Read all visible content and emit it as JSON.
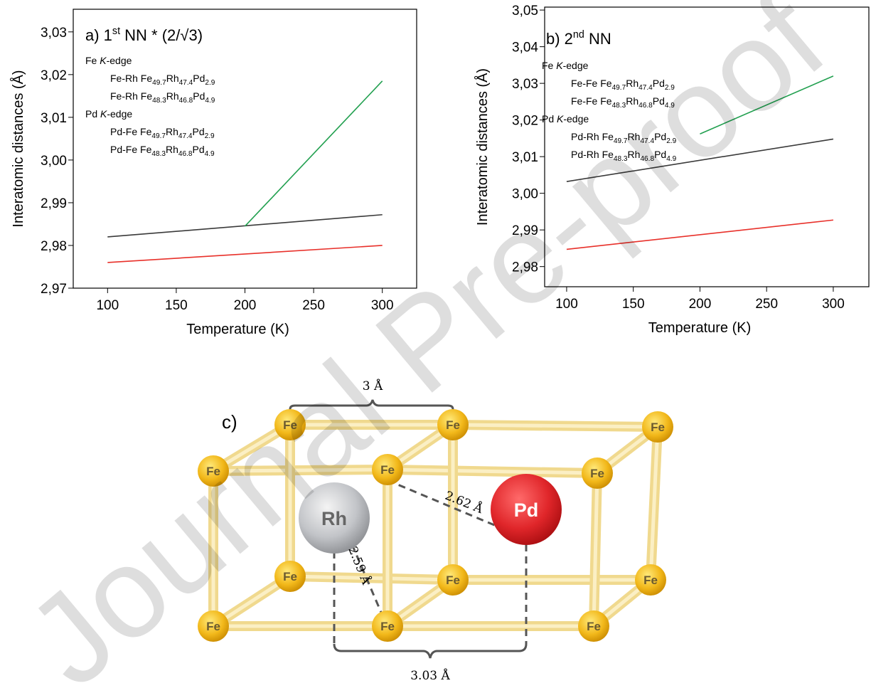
{
  "chart_data": [
    {
      "type": "line",
      "title": "a) 1st NN * (2/√3)",
      "x_label": "Temperature (K)",
      "y_label": "Interatomic distances (Å)",
      "xlim": [
        75,
        325
      ],
      "xticks": [
        100,
        150,
        200,
        250,
        300
      ],
      "ylim": [
        2.97,
        3.0353
      ],
      "yticks": [
        {
          "value": 2.97,
          "label": "2,97"
        },
        {
          "value": 2.98,
          "label": "2,98"
        },
        {
          "value": 2.99,
          "label": "2,99"
        },
        {
          "value": 3.0,
          "label": "3,00"
        },
        {
          "value": 3.01,
          "label": "3,01"
        },
        {
          "value": 3.02,
          "label": "3,02"
        },
        {
          "value": 3.03,
          "label": "3,03"
        }
      ],
      "series": [
        {
          "name": "Fe-Rh Fe49.7Rh47.4Pd2.9",
          "group": "Fe K-edge",
          "color": "#3a3a3a",
          "x": [
            100,
            300
          ],
          "values": [
            2.982,
            2.9872
          ]
        },
        {
          "name": "Fe-Rh Fe48.3Rh46.8Pd4.9",
          "group": "Fe K-edge",
          "color": "#e8302a",
          "x": [
            100,
            300
          ],
          "values": [
            2.976,
            2.98
          ]
        },
        {
          "name": "Pd-Fe Fe49.7Rh47.4Pd2.9",
          "group": "Pd K-edge",
          "color": "#22a050",
          "x": [
            200,
            300
          ],
          "values": [
            2.9845,
            3.0185
          ]
        },
        {
          "name": "Pd-Fe Fe48.3Rh46.8Pd4.9",
          "group": "Pd K-edge",
          "x": [
            100,
            300
          ],
          "values": [
            null,
            null
          ]
        }
      ]
    },
    {
      "type": "line",
      "title": "b) 2nd NN",
      "x_label": "Temperature (K)",
      "y_label": "Interatomic distances (Å)",
      "xlim": [
        83.5,
        326.7
      ],
      "xticks": [
        100,
        150,
        200,
        250,
        300
      ],
      "ylim": [
        2.9745,
        3.0508
      ],
      "yticks": [
        {
          "value": 2.98,
          "label": "2,98"
        },
        {
          "value": 2.99,
          "label": "2,99"
        },
        {
          "value": 3.0,
          "label": "3,00"
        },
        {
          "value": 3.01,
          "label": "3,01"
        },
        {
          "value": 3.02,
          "label": "3,02"
        },
        {
          "value": 3.03,
          "label": "3,03"
        },
        {
          "value": 3.04,
          "label": "3,04"
        },
        {
          "value": 3.05,
          "label": "3,05"
        }
      ],
      "series": [
        {
          "name": "Fe-Fe Fe49.7Rh47.4Pd2.9",
          "group": "Fe K-edge",
          "color": "#22a050",
          "x": [
            200,
            300
          ],
          "values": [
            3.0162,
            3.032
          ]
        },
        {
          "name": "Fe-Fe Fe48.3Rh46.8Pd4.9",
          "group": "Fe K-edge",
          "x": [
            100,
            300
          ],
          "values": [
            null,
            null
          ]
        },
        {
          "name": "Pd-Rh Fe49.7Rh47.4Pd2.9",
          "group": "Pd K-edge",
          "color": "#3a3a3a",
          "x": [
            100,
            300
          ],
          "values": [
            3.0032,
            3.0148
          ]
        },
        {
          "name": "Pd-Rh Fe48.3Rh46.8Pd4.9",
          "group": "Pd K-edge",
          "color": "#e8302a",
          "x": [
            100,
            300
          ],
          "values": [
            2.9847,
            2.9927
          ]
        }
      ]
    }
  ],
  "diagram": {
    "label": "c)",
    "atoms": [
      "Fe",
      "Fe",
      "Fe",
      "Fe",
      "Fe",
      "Fe",
      "Fe",
      "Fe",
      "Fe",
      "Fe",
      "Fe",
      "Fe",
      "Rh",
      "Pd"
    ],
    "distances": [
      "3 Å",
      "2.62 Å",
      "2.59 Å",
      "3.03 Å"
    ]
  },
  "watermark": "Journal Pre-proof"
}
